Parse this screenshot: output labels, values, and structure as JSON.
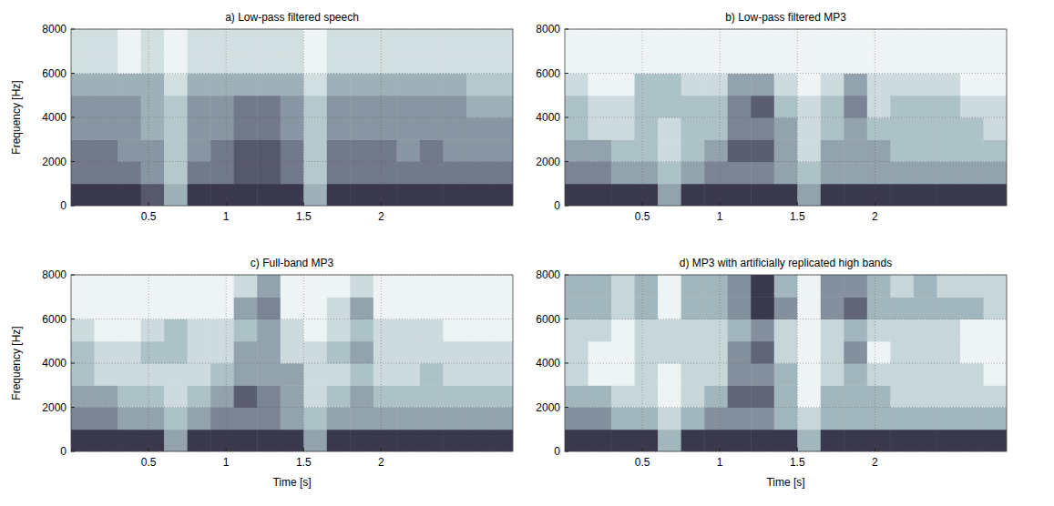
{
  "chart_data": [
    {
      "type": "heatmap",
      "title": "a) Low-pass filtered speech",
      "ylabel": "Frequency [Hz]",
      "xlim": [
        0,
        2.85
      ],
      "ylim": [
        0,
        8000
      ],
      "xticks": [
        0.5,
        1,
        1.5,
        2
      ],
      "yticks": [
        0,
        2000,
        4000,
        6000,
        8000
      ],
      "grid": true,
      "x_bins": [
        0,
        0.15,
        0.3,
        0.45,
        0.6,
        0.75,
        0.9,
        1.05,
        1.2,
        1.35,
        1.5,
        1.65,
        1.8,
        1.95,
        2.1,
        2.25,
        2.4,
        2.55,
        2.7,
        2.85
      ],
      "y_bins": [
        0,
        1000,
        2000,
        3000,
        4000,
        5000,
        6000,
        7000,
        8000
      ],
      "cells": [
        [
          8,
          8,
          8,
          7,
          4,
          8,
          8,
          8,
          8,
          8,
          4,
          8,
          8,
          8,
          8,
          8,
          8,
          8,
          8
        ],
        [
          6,
          6,
          6,
          5,
          3,
          6,
          6,
          7,
          7,
          6,
          3,
          6,
          6,
          6,
          6,
          6,
          6,
          6,
          6
        ],
        [
          6,
          6,
          5,
          5,
          3,
          5,
          6,
          7,
          7,
          6,
          3,
          6,
          6,
          6,
          5,
          6,
          5,
          5,
          5
        ],
        [
          5,
          5,
          5,
          4,
          3,
          5,
          5,
          6,
          6,
          5,
          3,
          5,
          5,
          5,
          5,
          5,
          5,
          5,
          5
        ],
        [
          5,
          5,
          5,
          4,
          3,
          5,
          5,
          6,
          6,
          5,
          3,
          5,
          5,
          5,
          5,
          5,
          5,
          4,
          4
        ],
        [
          4,
          4,
          4,
          4,
          2,
          4,
          4,
          4,
          4,
          4,
          2,
          4,
          4,
          4,
          4,
          4,
          4,
          3,
          3
        ],
        [
          2,
          2,
          1,
          2,
          1,
          2,
          2,
          2,
          2,
          2,
          1,
          2,
          2,
          2,
          2,
          2,
          2,
          2,
          2
        ],
        [
          2,
          2,
          1,
          2,
          1,
          2,
          2,
          2,
          2,
          2,
          1,
          2,
          2,
          2,
          2,
          2,
          2,
          2,
          2
        ]
      ]
    },
    {
      "type": "heatmap",
      "title": "b) Low-pass filtered MP3",
      "xlim": [
        0,
        2.85
      ],
      "ylim": [
        0,
        8000
      ],
      "xticks": [
        0.5,
        1,
        1.5,
        2
      ],
      "yticks": [
        0,
        2000,
        4000,
        6000,
        8000
      ],
      "grid": true,
      "x_bins": [
        0,
        0.15,
        0.3,
        0.45,
        0.6,
        0.75,
        0.9,
        1.05,
        1.2,
        1.35,
        1.5,
        1.65,
        1.8,
        1.95,
        2.1,
        2.25,
        2.4,
        2.55,
        2.7,
        2.85
      ],
      "y_bins": [
        0,
        1000,
        2000,
        3000,
        4000,
        5000,
        6000,
        7000,
        8000
      ],
      "cells": [
        [
          7,
          7,
          7,
          7,
          4,
          7,
          7,
          7,
          7,
          7,
          4,
          7,
          7,
          7,
          7,
          7,
          7,
          7,
          7
        ],
        [
          5,
          5,
          4,
          4,
          3,
          4,
          5,
          5,
          5,
          4,
          3,
          4,
          4,
          4,
          4,
          4,
          4,
          4,
          4
        ],
        [
          4,
          4,
          3,
          3,
          2,
          3,
          4,
          6,
          6,
          4,
          2,
          4,
          4,
          4,
          3,
          3,
          3,
          3,
          3
        ],
        [
          3,
          2,
          2,
          3,
          2,
          3,
          3,
          5,
          5,
          4,
          2,
          3,
          4,
          3,
          3,
          3,
          3,
          3,
          2
        ],
        [
          3,
          2,
          2,
          3,
          3,
          3,
          3,
          5,
          6,
          3,
          2,
          3,
          5,
          2,
          3,
          3,
          3,
          2,
          2
        ],
        [
          2,
          1,
          1,
          3,
          3,
          2,
          2,
          4,
          4,
          2,
          1,
          2,
          4,
          2,
          2,
          2,
          2,
          1,
          1
        ],
        [
          1,
          1,
          1,
          1,
          1,
          1,
          1,
          1,
          1,
          1,
          1,
          1,
          1,
          1,
          1,
          1,
          1,
          1,
          1
        ],
        [
          1,
          1,
          1,
          1,
          1,
          1,
          1,
          1,
          1,
          1,
          1,
          1,
          1,
          1,
          1,
          1,
          1,
          1,
          1
        ]
      ]
    },
    {
      "type": "heatmap",
      "title": "c) Full-band MP3",
      "xlabel": "Time [s]",
      "ylabel": "Frequency [Hz]",
      "xlim": [
        0,
        2.85
      ],
      "ylim": [
        0,
        8000
      ],
      "xticks": [
        0.5,
        1,
        1.5,
        2
      ],
      "yticks": [
        0,
        2000,
        4000,
        6000,
        8000
      ],
      "grid": true,
      "x_bins": [
        0,
        0.15,
        0.3,
        0.45,
        0.6,
        0.75,
        0.9,
        1.05,
        1.2,
        1.35,
        1.5,
        1.65,
        1.8,
        1.95,
        2.1,
        2.25,
        2.4,
        2.55,
        2.7,
        2.85
      ],
      "y_bins": [
        0,
        1000,
        2000,
        3000,
        4000,
        5000,
        6000,
        7000,
        8000
      ],
      "cells": [
        [
          7,
          7,
          7,
          7,
          4,
          7,
          7,
          7,
          7,
          7,
          4,
          7,
          7,
          7,
          7,
          7,
          7,
          7,
          7
        ],
        [
          5,
          5,
          4,
          4,
          3,
          4,
          5,
          5,
          5,
          4,
          3,
          4,
          4,
          4,
          4,
          4,
          4,
          4,
          4
        ],
        [
          4,
          4,
          3,
          3,
          2,
          3,
          4,
          6,
          5,
          4,
          2,
          3,
          4,
          3,
          3,
          3,
          3,
          3,
          3
        ],
        [
          3,
          2,
          2,
          2,
          2,
          2,
          3,
          4,
          4,
          4,
          2,
          2,
          3,
          2,
          2,
          3,
          2,
          2,
          2
        ],
        [
          3,
          2,
          2,
          3,
          3,
          2,
          2,
          4,
          4,
          2,
          2,
          3,
          4,
          2,
          2,
          2,
          2,
          2,
          2
        ],
        [
          2,
          1,
          1,
          2,
          3,
          2,
          2,
          3,
          4,
          2,
          1,
          2,
          3,
          2,
          2,
          2,
          1,
          1,
          1
        ],
        [
          1,
          1,
          1,
          1,
          1,
          1,
          1,
          4,
          5,
          1,
          1,
          2,
          4,
          1,
          1,
          1,
          1,
          1,
          1
        ],
        [
          1,
          1,
          1,
          1,
          1,
          1,
          1,
          2,
          4,
          1,
          1,
          1,
          2,
          1,
          1,
          1,
          1,
          1,
          1
        ]
      ]
    },
    {
      "type": "heatmap",
      "title": "d) MP3 with artificially replicated high bands",
      "xlabel": "Time [s]",
      "xlim": [
        0,
        2.85
      ],
      "ylim": [
        0,
        8000
      ],
      "xticks": [
        0.5,
        1,
        1.5,
        2
      ],
      "yticks": [
        0,
        2000,
        4000,
        6000,
        8000
      ],
      "grid": true,
      "x_bins": [
        0,
        0.15,
        0.3,
        0.45,
        0.6,
        0.75,
        0.9,
        1.05,
        1.2,
        1.35,
        1.5,
        1.65,
        1.8,
        1.95,
        2.1,
        2.25,
        2.4,
        2.55,
        2.7,
        2.85
      ],
      "y_bins": [
        0,
        1000,
        2000,
        3000,
        4000,
        5000,
        6000,
        7000,
        8000
      ],
      "cells": [
        [
          7,
          7,
          7,
          7,
          4,
          7,
          7,
          7,
          7,
          7,
          4,
          7,
          7,
          7,
          7,
          7,
          7,
          7,
          7
        ],
        [
          5,
          5,
          4,
          4,
          3,
          4,
          5,
          5,
          5,
          4,
          3,
          4,
          4,
          4,
          4,
          4,
          4,
          4,
          4
        ],
        [
          4,
          4,
          3,
          3,
          2,
          3,
          4,
          6,
          6,
          4,
          2,
          4,
          4,
          4,
          3,
          3,
          3,
          3,
          3
        ],
        [
          3,
          2,
          2,
          3,
          2,
          3,
          3,
          5,
          5,
          4,
          2,
          3,
          4,
          3,
          3,
          3,
          3,
          3,
          2
        ],
        [
          3,
          2,
          2,
          3,
          3,
          3,
          3,
          5,
          6,
          3,
          2,
          3,
          5,
          2,
          3,
          3,
          3,
          2,
          2
        ],
        [
          3,
          3,
          2,
          3,
          3,
          3,
          3,
          4,
          5,
          3,
          2,
          3,
          4,
          3,
          3,
          3,
          3,
          2,
          2
        ],
        [
          4,
          4,
          3,
          4,
          2,
          4,
          4,
          5,
          7,
          5,
          2,
          5,
          6,
          4,
          4,
          4,
          4,
          4,
          3
        ],
        [
          4,
          4,
          3,
          4,
          2,
          4,
          4,
          5,
          7,
          4,
          2,
          5,
          5,
          4,
          3,
          4,
          3,
          3,
          3
        ]
      ]
    }
  ]
}
